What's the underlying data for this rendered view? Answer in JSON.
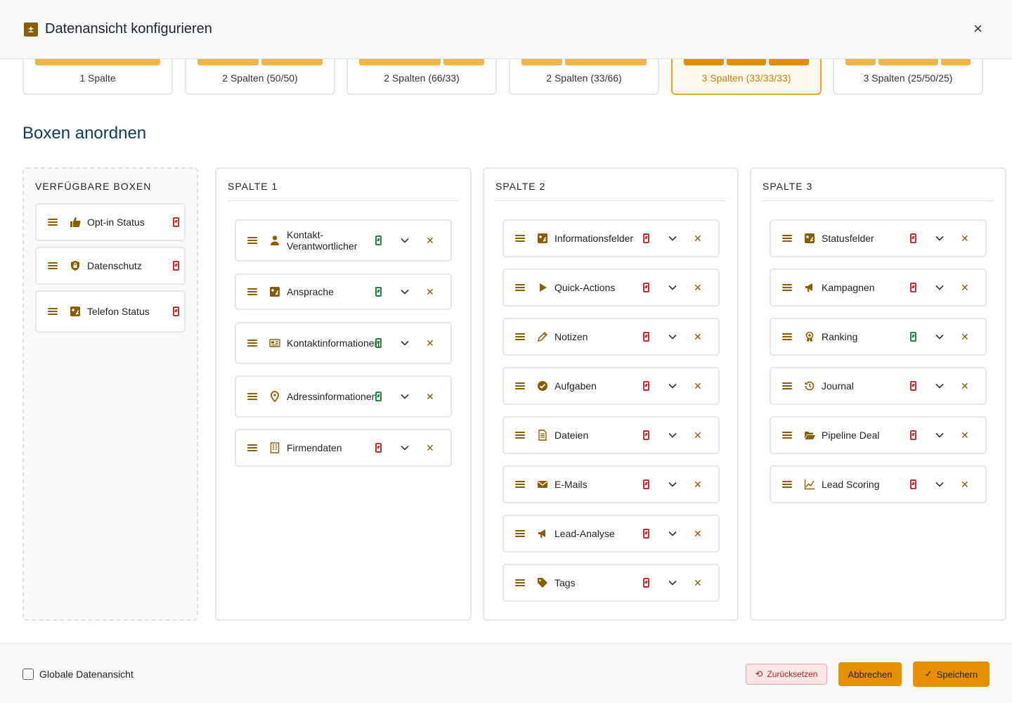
{
  "modal": {
    "title": "Datenansicht konfigurieren",
    "title_icon": "plus-minus-icon",
    "close_label": "×"
  },
  "layouts": [
    {
      "label": "1 Spalte",
      "bars": [
        100
      ],
      "active": false
    },
    {
      "label": "2 Spalten (50/50)",
      "bars": [
        50,
        50
      ],
      "active": false
    },
    {
      "label": "2 Spalten (66/33)",
      "bars": [
        66,
        33
      ],
      "active": false
    },
    {
      "label": "2 Spalten (33/66)",
      "bars": [
        33,
        66
      ],
      "active": false
    },
    {
      "label": "3 Spalten (33/33/33)",
      "bars": [
        33,
        33,
        33
      ],
      "active": true
    },
    {
      "label": "3 Spalten (25/50/25)",
      "bars": [
        25,
        50,
        25
      ],
      "active": false
    }
  ],
  "section_title": "Boxen anordnen",
  "available": {
    "title": "Verfügbare Boxen",
    "items": [
      {
        "label": "Opt-in Status",
        "icon": "thumbs-up-icon",
        "mobile": "red"
      },
      {
        "label": "Datenschutz",
        "icon": "shield-lock-icon",
        "mobile": "red"
      },
      {
        "label": "Telefon Status",
        "icon": "plus-minus-icon",
        "mobile": "red"
      }
    ]
  },
  "columns": [
    {
      "title": "Spalte 1",
      "items": [
        {
          "label": "Kontakt-Verantwortlicher",
          "icon": "user-icon",
          "mobile": "green"
        },
        {
          "label": "Ansprache",
          "icon": "plus-minus-icon",
          "mobile": "green"
        },
        {
          "label": "Kontaktinformationen",
          "icon": "id-card-icon",
          "mobile": "green"
        },
        {
          "label": "Adressinformationen",
          "icon": "map-pin-icon",
          "mobile": "green"
        },
        {
          "label": "Firmendaten",
          "icon": "building-icon",
          "mobile": "red"
        }
      ]
    },
    {
      "title": "Spalte 2",
      "items": [
        {
          "label": "Informationsfelder",
          "icon": "plus-minus-icon",
          "mobile": "red"
        },
        {
          "label": "Quick-Actions",
          "icon": "play-icon",
          "mobile": "red"
        },
        {
          "label": "Notizen",
          "icon": "pencil-icon",
          "mobile": "red"
        },
        {
          "label": "Aufgaben",
          "icon": "check-circle-icon",
          "mobile": "red"
        },
        {
          "label": "Dateien",
          "icon": "file-icon",
          "mobile": "red"
        },
        {
          "label": "E-Mails",
          "icon": "envelope-icon",
          "mobile": "red"
        },
        {
          "label": "Lead-Analyse",
          "icon": "megaphone-icon",
          "mobile": "red"
        },
        {
          "label": "Tags",
          "icon": "tag-icon",
          "mobile": "red"
        }
      ]
    },
    {
      "title": "Spalte 3",
      "items": [
        {
          "label": "Statusfelder",
          "icon": "plus-minus-icon",
          "mobile": "red"
        },
        {
          "label": "Kampagnen",
          "icon": "megaphone-icon",
          "mobile": "red"
        },
        {
          "label": "Ranking",
          "icon": "award-icon",
          "mobile": "green"
        },
        {
          "label": "Journal",
          "icon": "history-icon",
          "mobile": "red"
        },
        {
          "label": "Pipeline Deal",
          "icon": "folder-open-icon",
          "mobile": "red"
        },
        {
          "label": "Lead Scoring",
          "icon": "chart-line-icon",
          "mobile": "red"
        }
      ]
    }
  ],
  "footer": {
    "global_label": "Globale Datenansicht",
    "global_checked": false,
    "reset_label": "Zurücksetzen",
    "cancel_label": "Abbrechen",
    "save_label": "Speichern"
  },
  "colors": {
    "accent": "#e88f00",
    "icon": "#8a5d00",
    "mobile_on": "#1e8a3c",
    "mobile_off": "#d12b2b",
    "heading": "#103a5a"
  }
}
